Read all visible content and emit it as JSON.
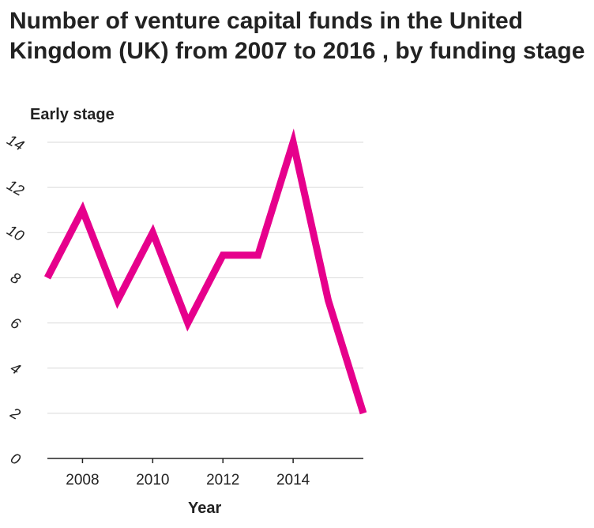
{
  "chart_data": {
    "type": "line",
    "title": "Number of venture capital funds in the United Kingdom (UK) from 2007 to 2016 , by funding stage",
    "ylabel": "Early stage",
    "xlabel": "Year",
    "x": [
      2007,
      2008,
      2009,
      2010,
      2011,
      2012,
      2013,
      2014,
      2015,
      2016
    ],
    "series": [
      {
        "values": [
          8,
          11,
          7,
          10,
          6,
          9,
          9,
          14,
          7,
          2
        ],
        "color": "#e6008c"
      }
    ],
    "xlim": [
      2007,
      2016
    ],
    "ylim": [
      0,
      14
    ],
    "yticks": [
      0,
      2,
      4,
      6,
      8,
      10,
      12,
      14
    ],
    "xticks": [
      2008,
      2010,
      2012,
      2014
    ],
    "grid": "horizontal"
  }
}
